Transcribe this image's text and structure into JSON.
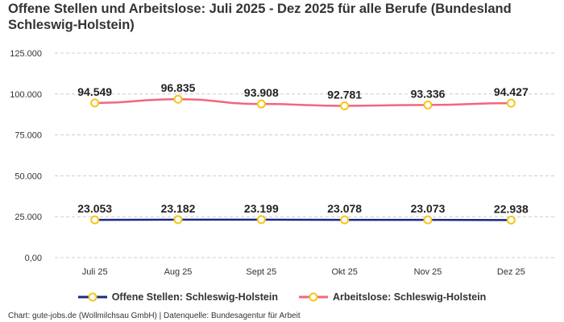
{
  "chart_data": {
    "type": "line",
    "title": "Offene Stellen und Arbeitslose: Juli 2025 - Dez 2025 für alle Berufe (Bundesland Schleswig-Holstein)",
    "categories": [
      "Juli 25",
      "Aug 25",
      "Sept 25",
      "Okt 25",
      "Nov 25",
      "Dez 25"
    ],
    "ylim": [
      0,
      125000
    ],
    "yticks": [
      0,
      25000,
      50000,
      75000,
      100000,
      125000
    ],
    "ytick_labels": [
      "0,00",
      "25.000",
      "50.000",
      "75.000",
      "100.000",
      "125.000"
    ],
    "grid": true,
    "legend_position": "bottom",
    "series": [
      {
        "name": "Offene Stellen: Schleswig-Holstein",
        "color": "#1a2a80",
        "marker_color": "#f5c518",
        "values": [
          23053,
          23182,
          23199,
          23078,
          23073,
          22938
        ],
        "labels": [
          "23.053",
          "23.182",
          "23.199",
          "23.078",
          "23.073",
          "22.938"
        ]
      },
      {
        "name": "Arbeitslose: Schleswig-Holstein",
        "color": "#f2667e",
        "marker_color": "#f5c518",
        "values": [
          94549,
          96835,
          93908,
          92781,
          93336,
          94427
        ],
        "labels": [
          "94.549",
          "96.835",
          "93.908",
          "92.781",
          "93.336",
          "94.427"
        ]
      }
    ]
  },
  "source": "Chart: gute-jobs.de (Wollmilchsau GmbH) | Datenquelle: Bundesagentur für Arbeit"
}
